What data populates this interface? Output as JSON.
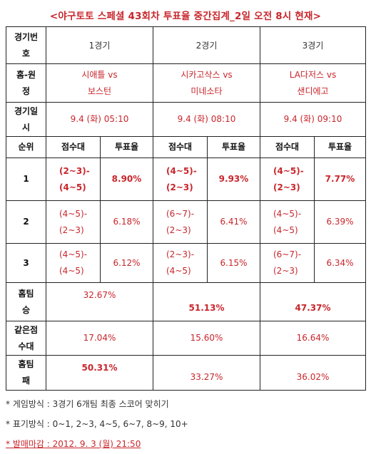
{
  "title": "<야구토토 스페셜 43회차 투표율 중간집계_2일 오전 8시 현재>",
  "header": {
    "col0": [
      "경기번",
      "호"
    ],
    "games": [
      "1경기",
      "2경기",
      "3경기"
    ]
  },
  "home_away": {
    "label": [
      "홈-원",
      "정"
    ],
    "games": [
      [
        "시애틀 vs",
        "보스턴"
      ],
      [
        "시카고삭스 vs",
        "미네소타"
      ],
      [
        "LA다저스 vs",
        "샌디에고"
      ]
    ]
  },
  "date": {
    "label": [
      "경기일",
      "시"
    ],
    "games": [
      "9.4 (화) 05:10",
      "9.4 (화) 08:10",
      "9.4 (화) 09:10"
    ]
  },
  "sub_header": {
    "rank": "순위",
    "score_range": "점수대",
    "vote_rate": "투표율"
  },
  "ranks": [
    {
      "rank": "1",
      "cells": [
        {
          "score": [
            "(2~3)-",
            "(4~5)"
          ],
          "rate": "8.90%"
        },
        {
          "score": [
            "(4~5)-",
            "(2~3)"
          ],
          "rate": "9.93%"
        },
        {
          "score": [
            "(4~5)-",
            "(2~3)"
          ],
          "rate": "7.77%"
        }
      ]
    },
    {
      "rank": "2",
      "cells": [
        {
          "score": [
            "(4~5)-",
            "(2~3)"
          ],
          "rate": "6.18%"
        },
        {
          "score": [
            "(6~7)-",
            "(2~3)"
          ],
          "rate": "6.41%"
        },
        {
          "score": [
            "(4~5)-",
            "(4~5)"
          ],
          "rate": "6.39%"
        }
      ]
    },
    {
      "rank": "3",
      "cells": [
        {
          "score": [
            "(4~5)-",
            "(4~5)"
          ],
          "rate": "6.12%"
        },
        {
          "score": [
            "(2~3)-",
            "(4~5)"
          ],
          "rate": "6.15%"
        },
        {
          "score": [
            "(6~7)-",
            "(2~3)"
          ],
          "rate": "6.34%"
        }
      ]
    }
  ],
  "home_win": {
    "label": [
      "홈팀",
      "승"
    ],
    "values": [
      "32.67%",
      "51.13%",
      "47.37%"
    ]
  },
  "draw": {
    "label": [
      "같은점",
      "수대"
    ],
    "values": [
      "17.04%",
      "15.60%",
      "16.64%"
    ]
  },
  "home_loss": {
    "label": [
      "홈팀",
      "패"
    ],
    "values": [
      "50.31%",
      "33.27%",
      "36.02%"
    ]
  },
  "notes": [
    "* 게임방식 : 3경기 6개팀 최종 스코어 맞히기",
    "* 표기방식 : 0~1, 2~3, 4~5, 6~7, 8~9, 10+",
    "* 발매마감 : 2012. 9. 3 (월) 21:50"
  ],
  "colors": {
    "accent_red": "#c8262c",
    "border": "#222222",
    "text": "#333333"
  }
}
